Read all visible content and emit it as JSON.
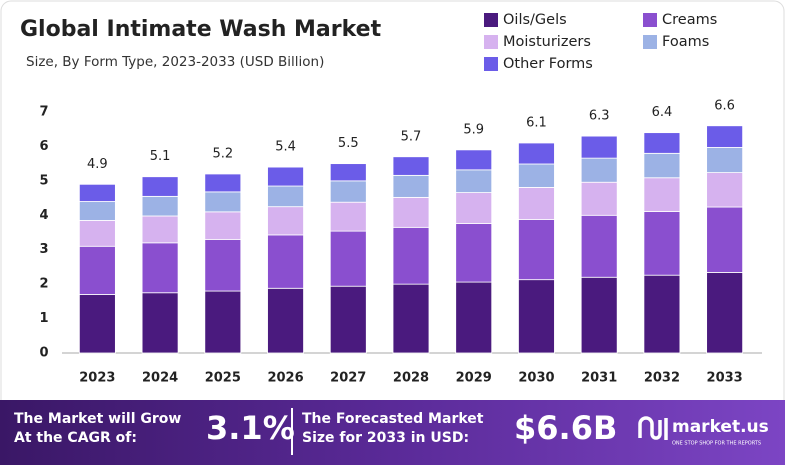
{
  "chart_data": {
    "type": "stacked_bar",
    "title": "Global Intimate Wash Market",
    "subtitle": "Size, By Form Type, 2023-2033 (USD Billion)",
    "categories": [
      "2023",
      "2024",
      "2025",
      "2026",
      "2027",
      "2028",
      "2029",
      "2030",
      "2031",
      "2032",
      "2033"
    ],
    "series": [
      {
        "name": "Oils/Gels",
        "color": "#4a1a7e",
        "values": [
          1.7,
          1.75,
          1.8,
          1.88,
          1.94,
          2.0,
          2.06,
          2.13,
          2.2,
          2.26,
          2.34
        ]
      },
      {
        "name": "Creams",
        "color": "#8a4fcf",
        "values": [
          1.4,
          1.45,
          1.5,
          1.55,
          1.6,
          1.65,
          1.7,
          1.75,
          1.8,
          1.85,
          1.9
        ]
      },
      {
        "name": "Moisturizers",
        "color": "#d6b2ef",
        "values": [
          0.75,
          0.78,
          0.8,
          0.82,
          0.84,
          0.87,
          0.9,
          0.93,
          0.96,
          0.98,
          1.0
        ]
      },
      {
        "name": "Foams",
        "color": "#9cb2e5",
        "values": [
          0.55,
          0.57,
          0.58,
          0.6,
          0.62,
          0.64,
          0.66,
          0.68,
          0.7,
          0.71,
          0.73
        ]
      },
      {
        "name": "Other Forms",
        "color": "#6b5ce8",
        "values": [
          0.5,
          0.57,
          0.52,
          0.55,
          0.5,
          0.54,
          0.58,
          0.61,
          0.64,
          0.6,
          0.63
        ]
      }
    ],
    "totals": [
      4.9,
      5.1,
      5.2,
      5.4,
      5.5,
      5.7,
      5.9,
      6.1,
      6.3,
      6.4,
      6.6
    ],
    "ylim": [
      0,
      7
    ],
    "yticks": [
      0,
      1,
      2,
      3,
      4,
      5,
      6,
      7
    ],
    "grid": false
  },
  "footer": {
    "cagr_label": [
      "The Market will Grow",
      "At the CAGR of:"
    ],
    "cagr": "3.1%",
    "forecast_label": [
      "The Forecasted Market",
      "Size for 2033 in USD:"
    ],
    "forecast": "$6.6B",
    "brand": "market.us",
    "tagline": "ONE STOP SHOP FOR THE REPORTS"
  }
}
